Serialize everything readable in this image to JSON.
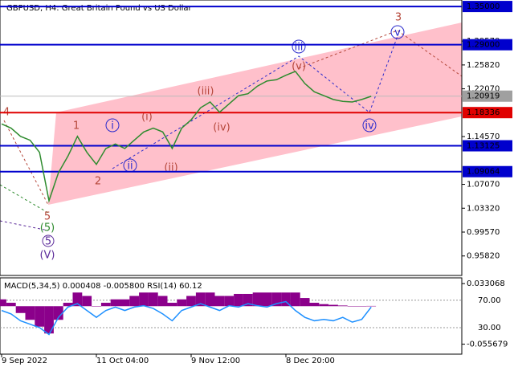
{
  "chart_data": [
    {
      "type": "line",
      "title": "GBPUSD, H4:  Great Britain Pound vs US Dollar",
      "categories": [
        "9 Sep 2022",
        null,
        null,
        null,
        null,
        null,
        null,
        null,
        null,
        null,
        "11 Oct 04:00",
        null,
        null,
        null,
        null,
        null,
        null,
        null,
        null,
        null,
        "9 Nov 12:00",
        null,
        null,
        null,
        null,
        null,
        null,
        null,
        null,
        null,
        "8 Dec 20:00",
        null,
        null,
        null,
        null,
        null,
        null,
        null,
        null,
        null
      ],
      "series": [
        {
          "color": "#2e8b2e",
          "values": [
            1.1655,
            1.159,
            1.146,
            1.14,
            1.121,
            1.045,
            1.089,
            1.115,
            1.146,
            1.121,
            1.102,
            1.127,
            1.134,
            1.127,
            1.14,
            1.153,
            1.159,
            1.153,
            1.127,
            1.159,
            1.172,
            1.191,
            1.2,
            1.184,
            1.197,
            1.21,
            1.213,
            1.225,
            1.233,
            1.235,
            1.242,
            1.248,
            1.229,
            1.216,
            1.21,
            1.204,
            1.201,
            1.2,
            1.204,
            1.209
          ]
        }
      ],
      "ylim": [
        0.9276,
        1.3602
      ],
      "yticks": [
        {
          "value": 0.9582,
          "label": "0.95820"
        },
        {
          "value": 0.9957,
          "label": "0.99570"
        },
        {
          "value": 1.0332,
          "label": "1.03320"
        },
        {
          "value": 1.0707,
          "label": "1.07070"
        },
        {
          "value": 1.1457,
          "label": "1.14570"
        },
        {
          "value": 1.2207,
          "label": "1.22070"
        },
        {
          "value": 1.2582,
          "label": "1.25820"
        },
        {
          "value": 1.2957,
          "label": "1.29570"
        }
      ],
      "current_price": {
        "value": 1.20919,
        "label": "1.20919"
      },
      "levels": [
        {
          "value": 1.35,
          "label": "1.35000",
          "color": "#0000cd"
        },
        {
          "value": 1.29,
          "label": "1.29000",
          "color": "#0000cd"
        },
        {
          "value": 1.18336,
          "label": "1.18336",
          "color": "#e00000"
        },
        {
          "value": 1.13125,
          "label": "1.13125",
          "color": "#0000cd"
        },
        {
          "value": 1.09064,
          "label": "1.09064",
          "color": "#0000cd"
        }
      ],
      "annotations": [
        "4",
        "1",
        "2",
        "3",
        "5",
        "(5)",
        "5",
        "(V)",
        "(i)",
        "(ii)",
        "(iii)",
        "(iv)",
        "(v)",
        "i",
        "ii",
        "iii",
        "iv",
        "v"
      ]
    },
    {
      "type": "bar",
      "title": "MACD(5,34,5) 0.000408 -0.005800 RSI(14) 60.12",
      "series": [
        {
          "color": "#8b008b",
          "values": [
            0.01,
            0.005,
            -0.01,
            -0.02,
            -0.03,
            -0.04,
            -0.02,
            0.005,
            0.02,
            0.015,
            0.0,
            0.005,
            0.01,
            0.01,
            0.015,
            0.02,
            0.02,
            0.015,
            0.005,
            0.01,
            0.015,
            0.02,
            0.02,
            0.015,
            0.015,
            0.018,
            0.018,
            0.02,
            0.02,
            0.02,
            0.02,
            0.02,
            0.012,
            0.005,
            0.003,
            0.002,
            0.001,
            0.0,
            0.0,
            0.0004
          ]
        },
        {
          "color": "#1e90ff",
          "axis": "y2",
          "values": [
            55,
            50,
            40,
            35,
            30,
            20,
            45,
            60,
            65,
            55,
            45,
            55,
            60,
            55,
            60,
            62,
            58,
            50,
            40,
            55,
            60,
            65,
            60,
            55,
            62,
            60,
            65,
            62,
            60,
            65,
            68,
            55,
            45,
            40,
            42,
            40,
            45,
            38,
            42,
            60
          ]
        }
      ],
      "ylim": [
        -0.0703,
        0.0415
      ],
      "yticks": [
        0.033068,
        -0.055679
      ],
      "y2lim": [
        -8.8,
        102.7
      ],
      "y2ticks": [
        {
          "value": 70,
          "label": "70.00"
        },
        {
          "value": 30,
          "label": "30.00"
        }
      ]
    }
  ]
}
